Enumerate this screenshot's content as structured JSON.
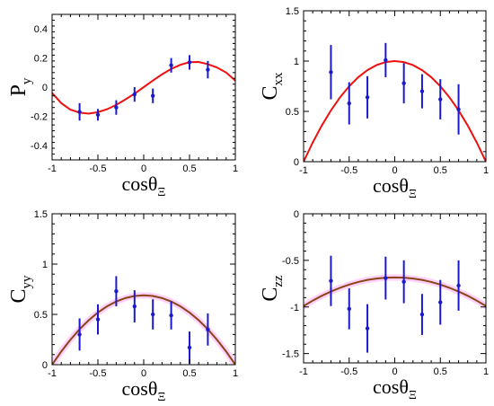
{
  "chart_data": [
    {
      "type": "scatter",
      "id": "Py",
      "ylabel_main": "P",
      "ylabel_sub": "y",
      "xlabel_main": "cosθ",
      "xlabel_sub": "Ξ",
      "xlim": [
        -1,
        1
      ],
      "ylim": [
        -0.5,
        0.5
      ],
      "xticks": [
        "-1",
        "-0.5",
        "0",
        "0.5",
        "1"
      ],
      "xtick_values": [
        -1,
        -0.5,
        0,
        0.5,
        1
      ],
      "yticks": [
        "-0.4",
        "-0.2",
        "0",
        "0.2",
        "0.4"
      ],
      "ytick_values": [
        -0.4,
        -0.2,
        0,
        0.2,
        0.4
      ],
      "curve_color": "#ee1111",
      "point_color": "#1a1acc",
      "curve": {
        "x": [
          -1,
          -0.9,
          -0.8,
          -0.7,
          -0.6,
          -0.5,
          -0.4,
          -0.3,
          -0.2,
          -0.1,
          0,
          0.1,
          0.2,
          0.3,
          0.4,
          0.5,
          0.6,
          0.7,
          0.8,
          0.9,
          1
        ],
        "y": [
          -0.04,
          -0.11,
          -0.155,
          -0.175,
          -0.182,
          -0.172,
          -0.152,
          -0.122,
          -0.085,
          -0.045,
          0.0,
          0.045,
          0.088,
          0.125,
          0.153,
          0.172,
          0.173,
          0.158,
          0.135,
          0.1,
          0.045
        ]
      },
      "points": {
        "x": [
          -0.7,
          -0.5,
          -0.3,
          -0.1,
          0.1,
          0.3,
          0.5,
          0.7
        ],
        "y": [
          -0.17,
          -0.19,
          -0.14,
          -0.05,
          -0.06,
          0.15,
          0.17,
          0.12
        ],
        "err": [
          0.06,
          0.04,
          0.05,
          0.05,
          0.05,
          0.05,
          0.05,
          0.06
        ]
      }
    },
    {
      "type": "scatter",
      "id": "Cxx",
      "ylabel_main": "C",
      "ylabel_sub": "xx",
      "xlabel_main": "cosθ",
      "xlabel_sub": "Ξ",
      "xlim": [
        -1,
        1
      ],
      "ylim": [
        0,
        1.5
      ],
      "xticks": [
        "-1",
        "-0.5",
        "0",
        "0.5",
        "1"
      ],
      "xtick_values": [
        -1,
        -0.5,
        0,
        0.5,
        1
      ],
      "yticks": [
        "0",
        "0.5",
        "1",
        "1.5"
      ],
      "ytick_values": [
        0,
        0.5,
        1,
        1.5
      ],
      "curve_color": "#ee1111",
      "point_color": "#1a1acc",
      "curve": {
        "x": [
          -1,
          -0.9,
          -0.8,
          -0.7,
          -0.6,
          -0.5,
          -0.4,
          -0.3,
          -0.2,
          -0.1,
          0,
          0.1,
          0.2,
          0.3,
          0.4,
          0.5,
          0.6,
          0.7,
          0.8,
          0.9,
          1
        ],
        "y": [
          0.0,
          0.19,
          0.36,
          0.51,
          0.64,
          0.75,
          0.84,
          0.91,
          0.96,
          0.99,
          1.0,
          0.99,
          0.96,
          0.91,
          0.84,
          0.75,
          0.64,
          0.51,
          0.36,
          0.19,
          0.0
        ]
      },
      "points": {
        "x": [
          -0.7,
          -0.5,
          -0.3,
          -0.1,
          0.1,
          0.3,
          0.5,
          0.7
        ],
        "y": [
          0.89,
          0.58,
          0.64,
          1.01,
          0.78,
          0.7,
          0.62,
          0.52
        ],
        "err": [
          0.27,
          0.21,
          0.21,
          0.17,
          0.2,
          0.17,
          0.2,
          0.25
        ]
      }
    },
    {
      "type": "scatter",
      "id": "Cyy",
      "ylabel_main": "C",
      "ylabel_sub": "yy",
      "xlabel_main": "cosθ",
      "xlabel_sub": "Ξ",
      "xlim": [
        -1,
        1
      ],
      "ylim": [
        0,
        1.5
      ],
      "xticks": [
        "-1",
        "-0.5",
        "0",
        "0.5",
        "1"
      ],
      "xtick_values": [
        -1,
        -0.5,
        0,
        0.5,
        1
      ],
      "yticks": [
        "0",
        "0.5",
        "1",
        "1.5"
      ],
      "ytick_values": [
        0,
        0.5,
        1,
        1.5
      ],
      "curve_color": "#8b4513",
      "band_color": "#ffb3ff",
      "point_color": "#1a1acc",
      "curve": {
        "x": [
          -1,
          -0.9,
          -0.8,
          -0.7,
          -0.6,
          -0.5,
          -0.4,
          -0.3,
          -0.2,
          -0.1,
          0,
          0.1,
          0.2,
          0.3,
          0.4,
          0.5,
          0.6,
          0.7,
          0.8,
          0.9,
          1
        ],
        "y": [
          0.0,
          0.131,
          0.248,
          0.352,
          0.442,
          0.518,
          0.58,
          0.628,
          0.662,
          0.683,
          0.69,
          0.683,
          0.662,
          0.628,
          0.58,
          0.518,
          0.442,
          0.352,
          0.248,
          0.131,
          0.0
        ]
      },
      "points": {
        "x": [
          -0.7,
          -0.5,
          -0.3,
          -0.1,
          0.1,
          0.3,
          0.5,
          0.7
        ],
        "y": [
          0.3,
          0.45,
          0.73,
          0.58,
          0.5,
          0.49,
          0.17,
          0.35
        ],
        "err": [
          0.16,
          0.15,
          0.15,
          0.16,
          0.15,
          0.14,
          0.16,
          0.16
        ]
      }
    },
    {
      "type": "scatter",
      "id": "Czz",
      "ylabel_main": "C",
      "ylabel_sub": "zz",
      "xlabel_main": "cosθ",
      "xlabel_sub": "Ξ",
      "xlim": [
        -1,
        1
      ],
      "ylim": [
        -1.6,
        0
      ],
      "xticks": [
        "-1",
        "-0.5",
        "0",
        "0.5",
        "1"
      ],
      "xtick_values": [
        -1,
        -0.5,
        0,
        0.5,
        1
      ],
      "yticks": [
        "-1.5",
        "-1",
        "-0.5",
        "0"
      ],
      "ytick_values": [
        -1.5,
        -1,
        -0.5,
        0
      ],
      "curve_color": "#8b4513",
      "band_color": "#ffb3ff",
      "point_color": "#1a1acc",
      "curve": {
        "x": [
          -1,
          -0.9,
          -0.8,
          -0.7,
          -0.6,
          -0.5,
          -0.4,
          -0.3,
          -0.2,
          -0.1,
          0,
          0.1,
          0.2,
          0.3,
          0.4,
          0.5,
          0.6,
          0.7,
          0.8,
          0.9,
          1
        ],
        "y": [
          -0.99,
          -0.932,
          -0.88,
          -0.834,
          -0.794,
          -0.76,
          -0.732,
          -0.71,
          -0.695,
          -0.686,
          -0.683,
          -0.686,
          -0.695,
          -0.71,
          -0.732,
          -0.76,
          -0.794,
          -0.834,
          -0.88,
          -0.932,
          -0.99
        ]
      },
      "points": {
        "x": [
          -0.7,
          -0.5,
          -0.3,
          -0.1,
          0.1,
          0.3,
          0.5,
          0.7
        ],
        "y": [
          -0.72,
          -1.02,
          -1.23,
          -0.69,
          -0.73,
          -1.08,
          -0.95,
          -0.77
        ],
        "err": [
          0.27,
          0.22,
          0.26,
          0.23,
          0.23,
          0.22,
          0.24,
          0.27
        ]
      }
    }
  ]
}
